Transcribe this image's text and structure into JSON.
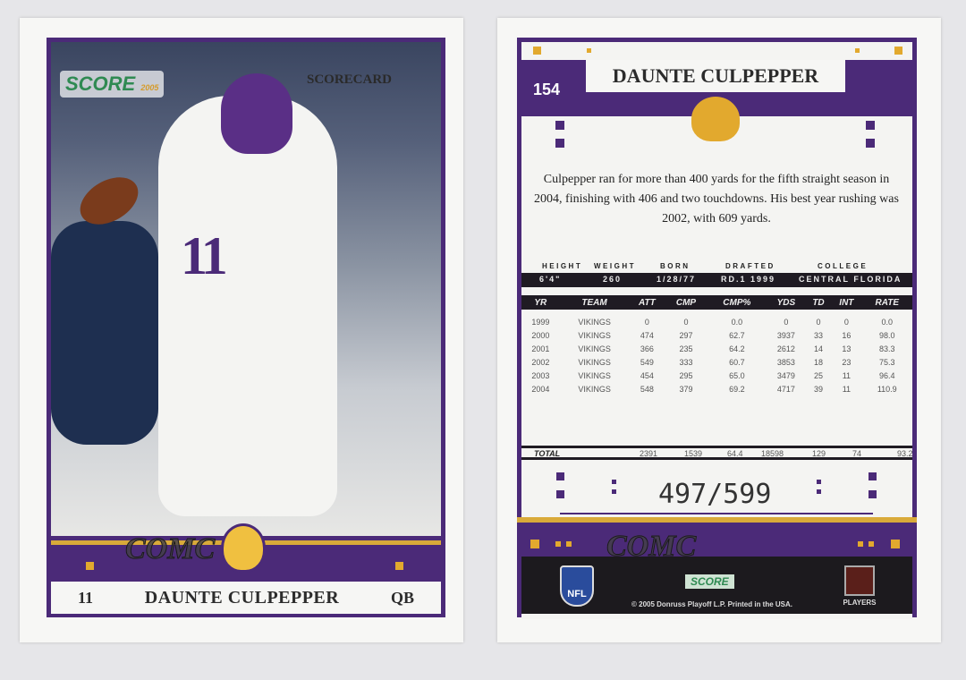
{
  "front": {
    "brand": "SCORE",
    "brand_year": "2005",
    "subset": "SCORECARD",
    "jersey_number": "11",
    "player_name": "DAUNTE CULPEPPER",
    "position": "QB",
    "watermark": "COMC"
  },
  "back": {
    "card_number": "154",
    "player_name": "DAUNTE CULPEPPER",
    "bio": "Culpepper ran for more than 400 yards for the fifth straight season in 2004, finishing with 406 and two touchdowns. His best year rushing was 2002, with 609 yards.",
    "info_labels": [
      "HEIGHT",
      "WEIGHT",
      "BORN",
      "DRAFTED",
      "COLLEGE"
    ],
    "info_values": [
      "6'4\"",
      "260",
      "1/28/77",
      "RD.1 1999",
      "CENTRAL FLORIDA"
    ],
    "stats_headers": [
      "YR",
      "TEAM",
      "ATT",
      "CMP",
      "CMP%",
      "YDS",
      "TD",
      "INT",
      "RATE"
    ],
    "stats_rows": [
      [
        "1999",
        "VIKINGS",
        "0",
        "0",
        "0.0",
        "0",
        "0",
        "0",
        "0.0"
      ],
      [
        "2000",
        "VIKINGS",
        "474",
        "297",
        "62.7",
        "3937",
        "33",
        "16",
        "98.0"
      ],
      [
        "2001",
        "VIKINGS",
        "366",
        "235",
        "64.2",
        "2612",
        "14",
        "13",
        "83.3"
      ],
      [
        "2002",
        "VIKINGS",
        "549",
        "333",
        "60.7",
        "3853",
        "18",
        "23",
        "75.3"
      ],
      [
        "2003",
        "VIKINGS",
        "454",
        "295",
        "65.0",
        "3479",
        "25",
        "11",
        "96.4"
      ],
      [
        "2004",
        "VIKINGS",
        "548",
        "379",
        "69.2",
        "4717",
        "39",
        "11",
        "110.9"
      ]
    ],
    "total": [
      "TOTAL",
      "2391",
      "1539",
      "64.4",
      "18598",
      "129",
      "74",
      "93.2"
    ],
    "serial": "497/599",
    "nfl_logo": "NFL",
    "score_logo": "SCORE",
    "copyright": "© 2005 Donruss Playoff L.P. Printed in the USA.",
    "players_logo": "PLAYERS",
    "watermark": "COMC"
  },
  "colors": {
    "purple": "#4b2a78",
    "gold": "#d9aa3a",
    "black": "#1f1b23"
  }
}
